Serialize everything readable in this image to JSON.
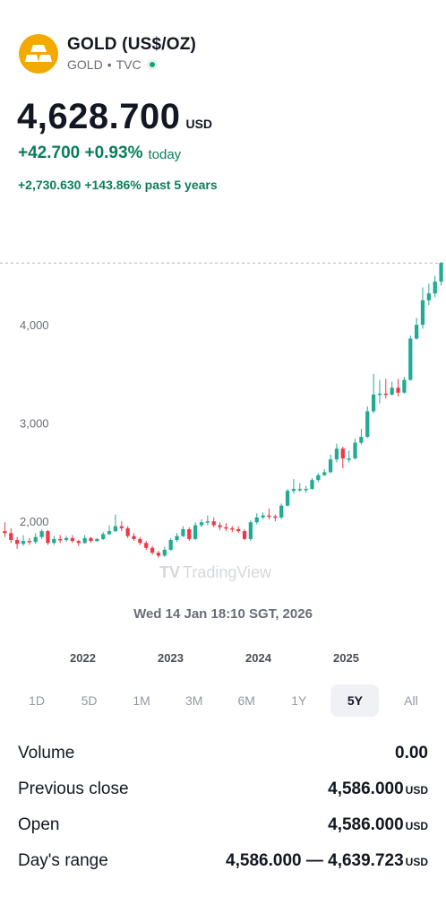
{
  "header": {
    "title": "GOLD (US$/OZ)",
    "symbol": "GOLD",
    "separator": "•",
    "exchange": "TVC",
    "logo_icon": "gold-bars-icon"
  },
  "quote": {
    "price": "4,628.700",
    "currency": "USD",
    "change": "+42.700 +0.93%",
    "change_period": "today",
    "change_5y": "+2,730.630 +143.86% past 5 years"
  },
  "chart_data": {
    "type": "candlestick",
    "y_ticks": [
      "2,000",
      "3,000",
      "4,000"
    ],
    "x_labels": [
      "2022",
      "2023",
      "2024",
      "2025"
    ],
    "date_label": "Wed 14 Jan 18:10 SGT, 2026",
    "watermark": "TradingView",
    "last_price_line": 4628.7,
    "ylim": [
      1600,
      4750
    ],
    "colors": {
      "up": "#22ab94",
      "down": "#f23645"
    },
    "candles": [
      [
        1900,
        1880,
        1990,
        1840
      ],
      [
        1880,
        1810,
        1930,
        1780
      ],
      [
        1810,
        1770,
        1840,
        1720
      ],
      [
        1770,
        1800,
        1860,
        1750
      ],
      [
        1800,
        1790,
        1830,
        1760
      ],
      [
        1790,
        1840,
        1880,
        1770
      ],
      [
        1840,
        1900,
        1920,
        1820
      ],
      [
        1900,
        1780,
        1910,
        1760
      ],
      [
        1780,
        1820,
        1850,
        1760
      ],
      [
        1820,
        1810,
        1860,
        1780
      ],
      [
        1810,
        1830,
        1850,
        1790
      ],
      [
        1830,
        1800,
        1860,
        1780
      ],
      [
        1800,
        1780,
        1810,
        1750
      ],
      [
        1780,
        1830,
        1860,
        1770
      ],
      [
        1830,
        1800,
        1840,
        1780
      ],
      [
        1800,
        1820,
        1830,
        1790
      ],
      [
        1820,
        1870,
        1890,
        1810
      ],
      [
        1870,
        1900,
        1960,
        1860
      ],
      [
        1900,
        1950,
        2070,
        1890
      ],
      [
        1950,
        1930,
        2000,
        1900
      ],
      [
        1930,
        1850,
        1950,
        1830
      ],
      [
        1850,
        1820,
        1880,
        1800
      ],
      [
        1820,
        1780,
        1840,
        1760
      ],
      [
        1780,
        1730,
        1800,
        1710
      ],
      [
        1730,
        1680,
        1750,
        1660
      ],
      [
        1680,
        1650,
        1700,
        1630
      ],
      [
        1650,
        1710,
        1740,
        1640
      ],
      [
        1710,
        1810,
        1830,
        1700
      ],
      [
        1810,
        1850,
        1880,
        1790
      ],
      [
        1850,
        1920,
        1950,
        1840
      ],
      [
        1920,
        1820,
        1940,
        1800
      ],
      [
        1820,
        1960,
        1990,
        1810
      ],
      [
        1960,
        1990,
        2020,
        1940
      ],
      [
        1990,
        2000,
        2060,
        1960
      ],
      [
        2000,
        1960,
        2040,
        1940
      ],
      [
        1960,
        1940,
        1990,
        1910
      ],
      [
        1940,
        1930,
        1980,
        1900
      ],
      [
        1930,
        1920,
        1950,
        1890
      ],
      [
        1920,
        1900,
        1950,
        1880
      ],
      [
        1900,
        1820,
        1920,
        1810
      ],
      [
        1820,
        1990,
        2010,
        1800
      ],
      [
        1990,
        2040,
        2080,
        1970
      ],
      [
        2040,
        2060,
        2090,
        2020
      ],
      [
        2060,
        2050,
        2130,
        2020
      ],
      [
        2050,
        2040,
        2070,
        2000
      ],
      [
        2040,
        2160,
        2180,
        2020
      ],
      [
        2160,
        2310,
        2330,
        2150
      ],
      [
        2310,
        2330,
        2430,
        2280
      ],
      [
        2330,
        2330,
        2390,
        2300
      ],
      [
        2330,
        2330,
        2360,
        2290
      ],
      [
        2330,
        2420,
        2440,
        2320
      ],
      [
        2420,
        2470,
        2490,
        2400
      ],
      [
        2470,
        2500,
        2530,
        2460
      ],
      [
        2500,
        2630,
        2680,
        2490
      ],
      [
        2630,
        2740,
        2790,
        2600
      ],
      [
        2740,
        2640,
        2760,
        2540
      ],
      [
        2640,
        2640,
        2720,
        2600
      ],
      [
        2640,
        2800,
        2840,
        2630
      ],
      [
        2800,
        2860,
        2940,
        2780
      ],
      [
        2860,
        3120,
        3170,
        2850
      ],
      [
        3120,
        3290,
        3500,
        3100
      ],
      [
        3290,
        3300,
        3440,
        3200
      ],
      [
        3300,
        3290,
        3450,
        3250
      ],
      [
        3290,
        3360,
        3420,
        3280
      ],
      [
        3360,
        3310,
        3450,
        3270
      ],
      [
        3310,
        3440,
        3470,
        3300
      ],
      [
        3440,
        3860,
        3890,
        3430
      ],
      [
        3860,
        4000,
        4070,
        3850
      ],
      [
        4000,
        4250,
        4380,
        3960
      ],
      [
        4250,
        4320,
        4420,
        4200
      ],
      [
        4320,
        4440,
        4500,
        4280
      ],
      [
        4440,
        4630,
        4640,
        4400
      ]
    ]
  },
  "ranges": {
    "items": [
      "1D",
      "5D",
      "1M",
      "3M",
      "6M",
      "1Y",
      "5Y",
      "All"
    ],
    "active": "5Y"
  },
  "stats": [
    {
      "label": "Volume",
      "value": "0.00",
      "unit": ""
    },
    {
      "label": "Previous close",
      "value": "4,586.000",
      "unit": "USD"
    },
    {
      "label": "Open",
      "value": "4,586.000",
      "unit": "USD"
    },
    {
      "label": "Day's range",
      "value": "4,586.000 — 4,639.723",
      "unit": "USD"
    }
  ]
}
